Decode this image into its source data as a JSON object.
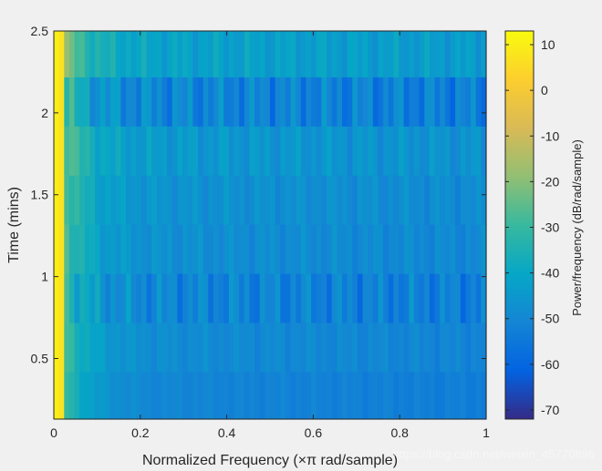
{
  "chart_data": {
    "type": "heatmap",
    "title": "",
    "xlabel": "Normalized Frequency  (×π rad/sample)",
    "ylabel": "Time (mins)",
    "xlim": [
      0,
      1
    ],
    "ylim": [
      0.13,
      2.5
    ],
    "x_ticks": [
      0,
      0.2,
      0.4,
      0.6,
      0.8,
      1
    ],
    "x_tick_labels": [
      "0",
      "0.2",
      "0.4",
      "0.6",
      "0.8",
      "1"
    ],
    "y_ticks": [
      0.5,
      1,
      1.5,
      2,
      2.5
    ],
    "y_tick_labels": [
      "0.5",
      "1",
      "1.5",
      "2",
      "2.5"
    ],
    "colorbar": {
      "label": "Power/frequency (dB/rad/sample)",
      "clim": [
        -72,
        13
      ],
      "ticks": [
        10,
        0,
        -10,
        -20,
        -30,
        -40,
        -50,
        -60,
        -70
      ],
      "tick_labels": [
        "10",
        "0",
        "-10",
        "-20",
        "-30",
        "-40",
        "-50",
        "-60",
        "-70"
      ],
      "colormap": "parula"
    },
    "time_rows": [
      {
        "t0": 0.13,
        "t1": 0.42,
        "base_db": -50,
        "stripe_amp": 2
      },
      {
        "t0": 0.42,
        "t1": 0.72,
        "base_db": -48,
        "stripe_amp": 3
      },
      {
        "t0": 0.72,
        "t1": 1.02,
        "base_db": -50,
        "stripe_amp": 8
      },
      {
        "t0": 1.02,
        "t1": 1.32,
        "base_db": -47,
        "stripe_amp": 4
      },
      {
        "t0": 1.32,
        "t1": 1.62,
        "base_db": -46,
        "stripe_amp": 4
      },
      {
        "t0": 1.62,
        "t1": 1.92,
        "base_db": -44,
        "stripe_amp": 5
      },
      {
        "t0": 1.92,
        "t1": 2.22,
        "base_db": -50,
        "stripe_amp": 9
      },
      {
        "t0": 2.22,
        "t1": 2.5,
        "base_db": -41,
        "stripe_amp": 5
      }
    ],
    "dc_bin_db": 10,
    "low_freq_rolloff_db": 18,
    "freq_bins": 84
  },
  "watermark": "https://blog.csdn.net/weixin_45770896"
}
